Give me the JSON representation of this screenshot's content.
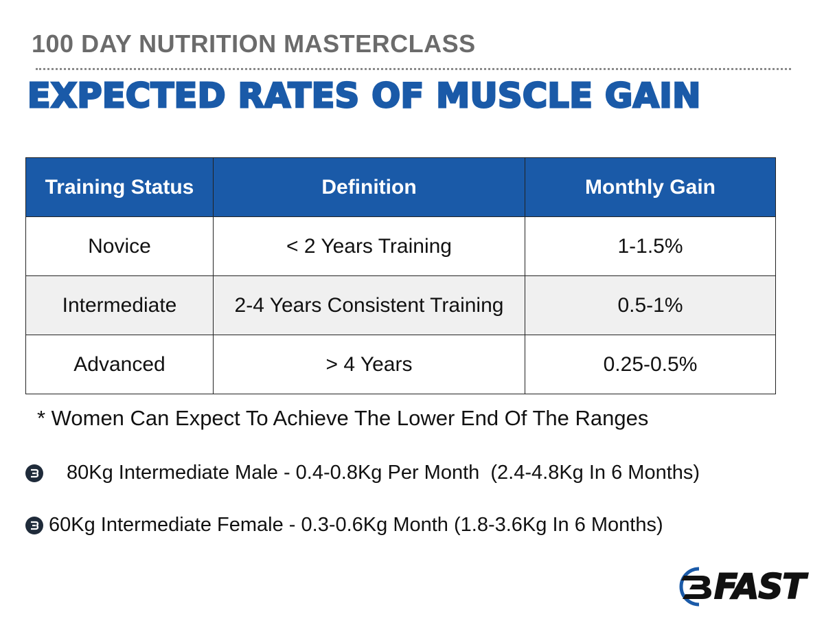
{
  "header": {
    "subtitle": "100 DAY NUTRITION MASTERCLASS",
    "title": "EXPECTED RATES OF MUSCLE GAIN"
  },
  "table": {
    "columns": [
      "Training Status",
      "Definition",
      "Monthly Gain"
    ],
    "rows": [
      {
        "status": "Novice",
        "definition": "< 2 Years Training",
        "gain": "1-1.5%"
      },
      {
        "status": "Intermediate",
        "definition": "2-4 Years Consistent Training",
        "gain": "0.5-1%"
      },
      {
        "status": "Advanced",
        "definition": "> 4 Years",
        "gain": "0.25-0.5%"
      }
    ],
    "colors": {
      "header_bg": "#1a5aa8",
      "header_text": "#ffffff",
      "shaded_row": "#f0f0f0"
    }
  },
  "notes": {
    "footnote": "* Women Can Expect To Achieve The Lower End Of The Ranges",
    "bullets": [
      {
        "icon": "b-logo-icon",
        "text": "80Kg Intermediate Male - 0.4-0.8Kg Per Month  (2.4-4.8Kg In 6 Months)"
      },
      {
        "icon": "b-logo-icon",
        "text": "60Kg Intermediate Female - 0.3-0.6Kg Month (1.8-3.6Kg In 6 Months)"
      }
    ]
  },
  "logo": {
    "text": "FAST",
    "accent": "#1a5aa8"
  }
}
